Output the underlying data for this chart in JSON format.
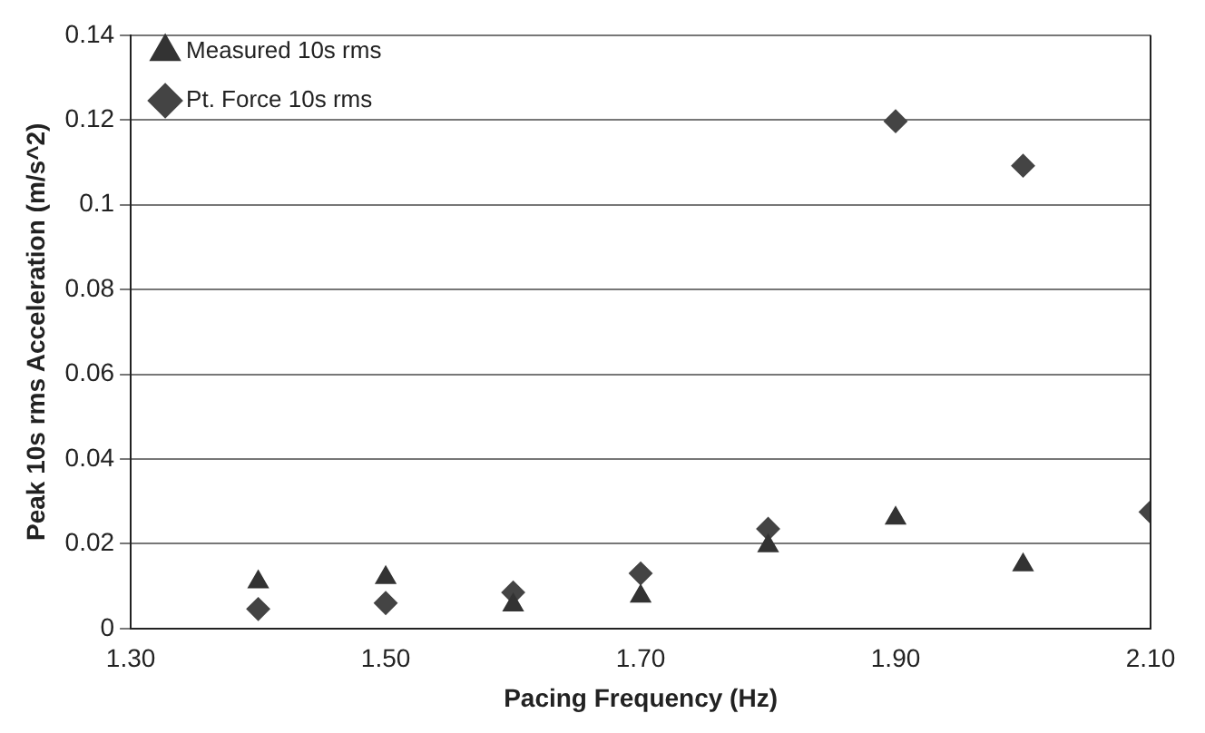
{
  "chart_data": {
    "type": "scatter",
    "xlabel": "Pacing Frequency (Hz)",
    "ylabel": "Peak 10s rms Acceleration (m/s^2)",
    "xlim": [
      1.3,
      2.1
    ],
    "xticks": [
      {
        "value": 1.3,
        "label": "1.30"
      },
      {
        "value": 1.5,
        "label": "1.50"
      },
      {
        "value": 1.7,
        "label": "1.70"
      },
      {
        "value": 1.9,
        "label": "1.90"
      },
      {
        "value": 2.1,
        "label": "2.10"
      }
    ],
    "ylim": [
      0,
      0.14
    ],
    "yticks": [
      0,
      0.02,
      0.04,
      0.06,
      0.08,
      0.1,
      0.12,
      0.14
    ],
    "grid": "y",
    "legend": "top left",
    "series": [
      {
        "name": "Measured 10s rms",
        "color": "#333333",
        "marker": "triangle",
        "x": [
          1.4,
          1.5,
          1.6,
          1.7,
          1.8,
          1.9,
          2.0
        ],
        "values": [
          0.011,
          0.012,
          0.0055,
          0.0076,
          0.0195,
          0.026,
          0.015
        ]
      },
      {
        "name": "Pt. Force 10s rms",
        "color": "#444444",
        "marker": "diamond",
        "x": [
          1.4,
          1.5,
          1.6,
          1.7,
          1.8,
          1.9,
          2.0,
          2.1
        ],
        "values": [
          0.0046,
          0.006,
          0.0085,
          0.013,
          0.0235,
          0.1197,
          0.1092,
          0.0275
        ]
      }
    ]
  }
}
